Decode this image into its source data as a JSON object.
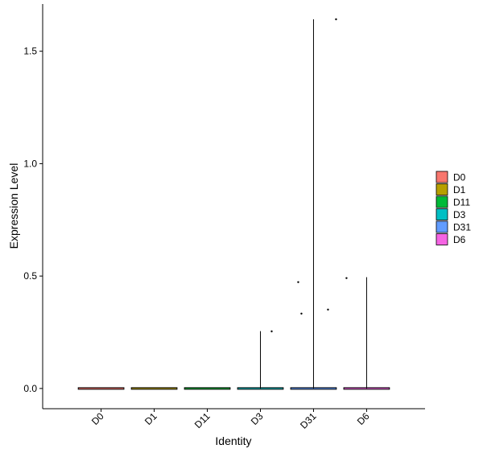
{
  "chart_data": {
    "type": "violin",
    "x_label": "Identity",
    "y_label": "Expression Level",
    "categories": [
      "D0",
      "D1",
      "D11",
      "D3",
      "D31",
      "D6"
    ],
    "colors": [
      "#F8766D",
      "#B79F00",
      "#00BA38",
      "#00BFC4",
      "#619CFF",
      "#F564E3"
    ],
    "ranges": [
      [
        0,
        0
      ],
      [
        0,
        0
      ],
      [
        0,
        0
      ],
      [
        0,
        0.255
      ],
      [
        0,
        1.642
      ],
      [
        0,
        0.495
      ]
    ],
    "points": [
      [],
      [],
      [],
      [
        0.254
      ],
      [
        0.473,
        0.333,
        0.351,
        1.642
      ],
      [
        0.491
      ]
    ],
    "ylim": [
      -0.09,
      1.71
    ],
    "yticks": [
      {
        "value": 0,
        "label": "0.0"
      },
      {
        "value": 0.5,
        "label": "0.5"
      },
      {
        "value": 1,
        "label": "1.0"
      },
      {
        "value": 1.5,
        "label": "1.5"
      }
    ],
    "legend": "right"
  }
}
